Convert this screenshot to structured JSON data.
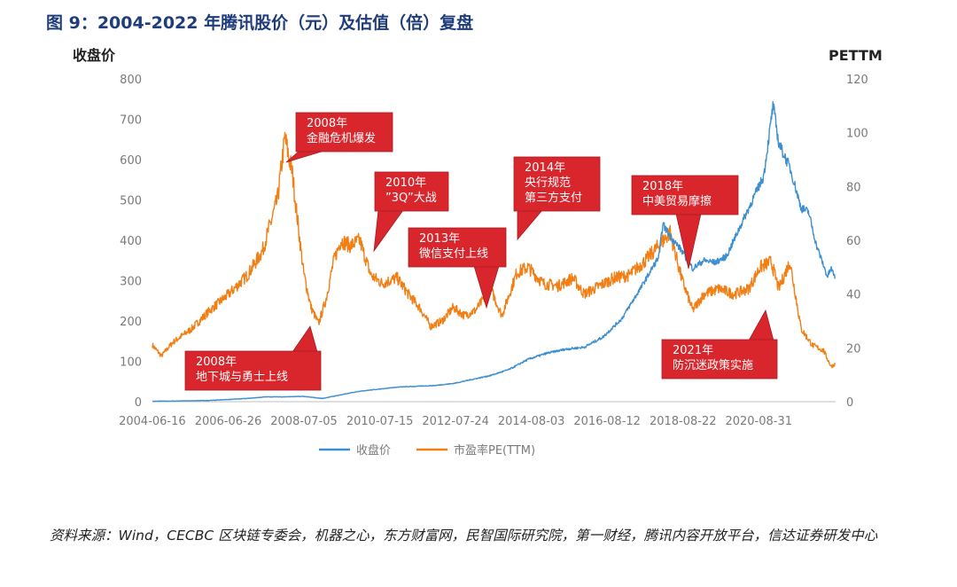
{
  "figure": {
    "title": "图 9：2004-2022 年腾讯股价（元）及估值（倍）复盘"
  },
  "source": "资料来源：Wind，CECBC 区块链专委会，机器之心，东方财富网，民智国际研究院，第一财经，腾讯内容开放平台，信达证券研发中心",
  "chart_data": {
    "type": "line",
    "y_left_label": "收盘价",
    "y_right_label": "PETTM",
    "ylim_left": [
      0,
      800
    ],
    "ylim_right": [
      0,
      120
    ],
    "yticks_left": [
      "800",
      "700",
      "600",
      "500",
      "400",
      "300",
      "200",
      "100",
      "0"
    ],
    "yticks_right": [
      "120",
      "100",
      "80",
      "60",
      "40",
      "20",
      "0"
    ],
    "x_tick_labels": [
      "2004-06-16",
      "2006-06-26",
      "2008-07-05",
      "2010-07-15",
      "2012-07-24",
      "2014-08-03",
      "2016-08-12",
      "2018-08-22",
      "2020-08-31"
    ],
    "grid": false,
    "legend_position": "bottom",
    "colors": {
      "price": "#3d8fcf",
      "pe": "#f07f16",
      "callout": "#d9262c"
    },
    "series": [
      {
        "name": "收盘价",
        "axis": "left",
        "x": [
          2004.46,
          2005.0,
          2006.0,
          2007.0,
          2007.5,
          2008.0,
          2008.5,
          2008.8,
          2009.0,
          2009.5,
          2010.0,
          2010.5,
          2011.0,
          2011.5,
          2012.0,
          2012.5,
          2013.0,
          2013.5,
          2014.0,
          2014.5,
          2015.0,
          2015.5,
          2016.0,
          2016.5,
          2017.0,
          2017.5,
          2018.0,
          2018.1,
          2018.3,
          2018.6,
          2018.9,
          2019.2,
          2019.5,
          2019.8,
          2020.0,
          2020.2,
          2020.5,
          2020.8,
          2021.05,
          2021.2,
          2021.5,
          2021.8,
          2022.0,
          2022.2,
          2022.35,
          2022.5,
          2022.6,
          2022.7
        ],
        "values": [
          0.9,
          1.5,
          3,
          8,
          12,
          12,
          13,
          10,
          8,
          17,
          26,
          31,
          36,
          38,
          40,
          45,
          55,
          65,
          80,
          105,
          120,
          130,
          135,
          160,
          205,
          280,
          360,
          440,
          410,
          375,
          330,
          350,
          345,
          360,
          400,
          440,
          500,
          560,
          735,
          640,
          580,
          480,
          470,
          390,
          350,
          310,
          330,
          310
        ]
      },
      {
        "name": "市盈率PE(TTM)",
        "axis": "right",
        "x": [
          2004.46,
          2004.7,
          2005.0,
          2005.5,
          2006.0,
          2006.5,
          2007.0,
          2007.4,
          2007.8,
          2008.0,
          2008.2,
          2008.35,
          2008.5,
          2008.7,
          2008.9,
          2009.1,
          2009.3,
          2009.5,
          2009.75,
          2010.0,
          2010.3,
          2010.6,
          2011.0,
          2011.3,
          2011.6,
          2011.9,
          2012.2,
          2012.5,
          2012.8,
          2013.1,
          2013.5,
          2013.8,
          2014.2,
          2014.5,
          2014.9,
          2015.3,
          2015.7,
          2016.0,
          2016.4,
          2016.8,
          2017.2,
          2017.6,
          2018.0,
          2018.3,
          2018.6,
          2018.9,
          2019.2,
          2019.6,
          2020.0,
          2020.4,
          2020.7,
          2021.0,
          2021.2,
          2021.5,
          2021.8,
          2022.1,
          2022.4,
          2022.6,
          2022.7
        ],
        "values": [
          21,
          17,
          22,
          27,
          34,
          40,
          47,
          56,
          75,
          98,
          85,
          66,
          48,
          35,
          29,
          38,
          52,
          60,
          58,
          60,
          47,
          44,
          46,
          40,
          35,
          28,
          30,
          35,
          32,
          34,
          42,
          32,
          48,
          50,
          44,
          43,
          46,
          40,
          43,
          46,
          47,
          52,
          58,
          63,
          46,
          34,
          40,
          42,
          40,
          42,
          50,
          52,
          42,
          52,
          27,
          21,
          19,
          13,
          14
        ]
      }
    ],
    "annotations": [
      {
        "lines": [
          "2008年",
          "金融危机爆发"
        ]
      },
      {
        "lines": [
          "2010年",
          "”3Q”大战"
        ]
      },
      {
        "lines": [
          "2013年",
          "微信支付上线"
        ]
      },
      {
        "lines": [
          "2014年",
          "央行规范",
          "第三方支付"
        ]
      },
      {
        "lines": [
          "2018年",
          "中美贸易摩擦"
        ]
      },
      {
        "lines": [
          "2008年",
          "地下城与勇士上线"
        ]
      },
      {
        "lines": [
          "2021年",
          "防沉迷政策实施"
        ]
      }
    ]
  }
}
